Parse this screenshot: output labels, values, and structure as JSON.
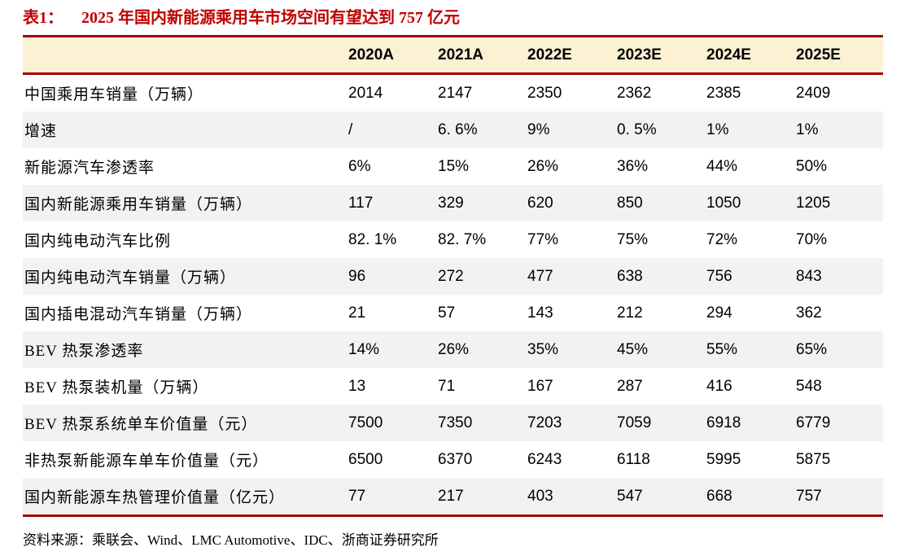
{
  "title": {
    "prefix": "表1：",
    "text": "2025 年国内新能源乘用车市场空间有望达到 757 亿元"
  },
  "table": {
    "columns": [
      "2020A",
      "2021A",
      "2022E",
      "2023E",
      "2024E",
      "2025E"
    ],
    "rows": [
      {
        "label": "中国乘用车销量（万辆）",
        "values": [
          "2014",
          "2147",
          "2350",
          "2362",
          "2385",
          "2409"
        ]
      },
      {
        "label": "增速",
        "values": [
          "/",
          "6. 6%",
          "9%",
          "0. 5%",
          "1%",
          "1%"
        ]
      },
      {
        "label": "新能源汽车渗透率",
        "values": [
          "6%",
          "15%",
          "26%",
          "36%",
          "44%",
          "50%"
        ]
      },
      {
        "label": "国内新能源乘用车销量（万辆）",
        "values": [
          "117",
          "329",
          "620",
          "850",
          "1050",
          "1205"
        ]
      },
      {
        "label": "国内纯电动汽车比例",
        "values": [
          "82. 1%",
          "82. 7%",
          "77%",
          "75%",
          "72%",
          "70%"
        ]
      },
      {
        "label": "国内纯电动汽车销量（万辆）",
        "values": [
          "96",
          "272",
          "477",
          "638",
          "756",
          "843"
        ]
      },
      {
        "label": "国内插电混动汽车销量（万辆）",
        "values": [
          "21",
          "57",
          "143",
          "212",
          "294",
          "362"
        ]
      },
      {
        "label": "BEV 热泵渗透率",
        "values": [
          "14%",
          "26%",
          "35%",
          "45%",
          "55%",
          "65%"
        ]
      },
      {
        "label": "BEV 热泵装机量（万辆）",
        "values": [
          "13",
          "71",
          "167",
          "287",
          "416",
          "548"
        ]
      },
      {
        "label": "BEV 热泵系统单车价值量（元）",
        "values": [
          "7500",
          "7350",
          "7203",
          "7059",
          "6918",
          "6779"
        ]
      },
      {
        "label": "非热泵新能源车单车价值量（元）",
        "values": [
          "6500",
          "6370",
          "6243",
          "6118",
          "5995",
          "5875"
        ]
      },
      {
        "label": "国内新能源车热管理价值量（亿元）",
        "values": [
          "77",
          "217",
          "403",
          "547",
          "668",
          "757"
        ]
      }
    ]
  },
  "source": "资料来源：乘联会、Wind、LMC Automotive、IDC、浙商证券研究所",
  "colors": {
    "title_red": "#C00000",
    "rule_red": "#A00000",
    "header_bg": "#FCF2D3",
    "alt_row_bg": "#F2F2F2",
    "text": "#000000"
  }
}
